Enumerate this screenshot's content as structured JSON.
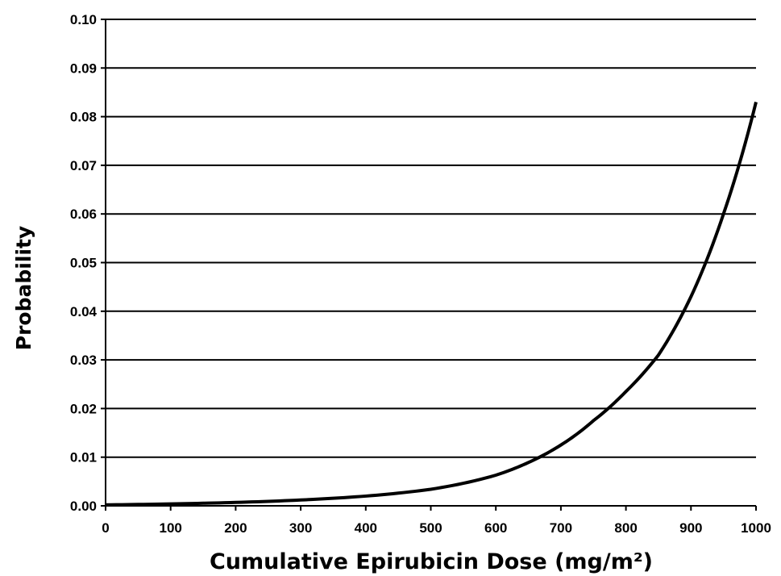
{
  "chart_data": {
    "type": "line",
    "title": "",
    "xlabel": "Cumulative Epirubicin Dose (mg/m²)",
    "ylabel": "Probability",
    "xlim": [
      0,
      1000
    ],
    "ylim": [
      0,
      0.1
    ],
    "x_ticks": [
      "0",
      "100",
      "200",
      "300",
      "400",
      "500",
      "600",
      "700",
      "800",
      "900",
      "1000"
    ],
    "y_ticks": [
      "0.00",
      "0.01",
      "0.02",
      "0.03",
      "0.04",
      "0.05",
      "0.06",
      "0.07",
      "0.08",
      "0.09",
      "0.10"
    ],
    "grid": "horizontal",
    "legend": "none",
    "line_color": "#000000",
    "series": [
      {
        "x": [
          0,
          100,
          200,
          300,
          400,
          500,
          600,
          650,
          700,
          750,
          800,
          850,
          900,
          950,
          1000
        ],
        "values": [
          0.0002,
          0.0004,
          0.0007,
          0.0012,
          0.002,
          0.0034,
          0.0063,
          0.0089,
          0.0125,
          0.0175,
          0.0235,
          0.031,
          0.043,
          0.06,
          0.083
        ]
      }
    ]
  }
}
